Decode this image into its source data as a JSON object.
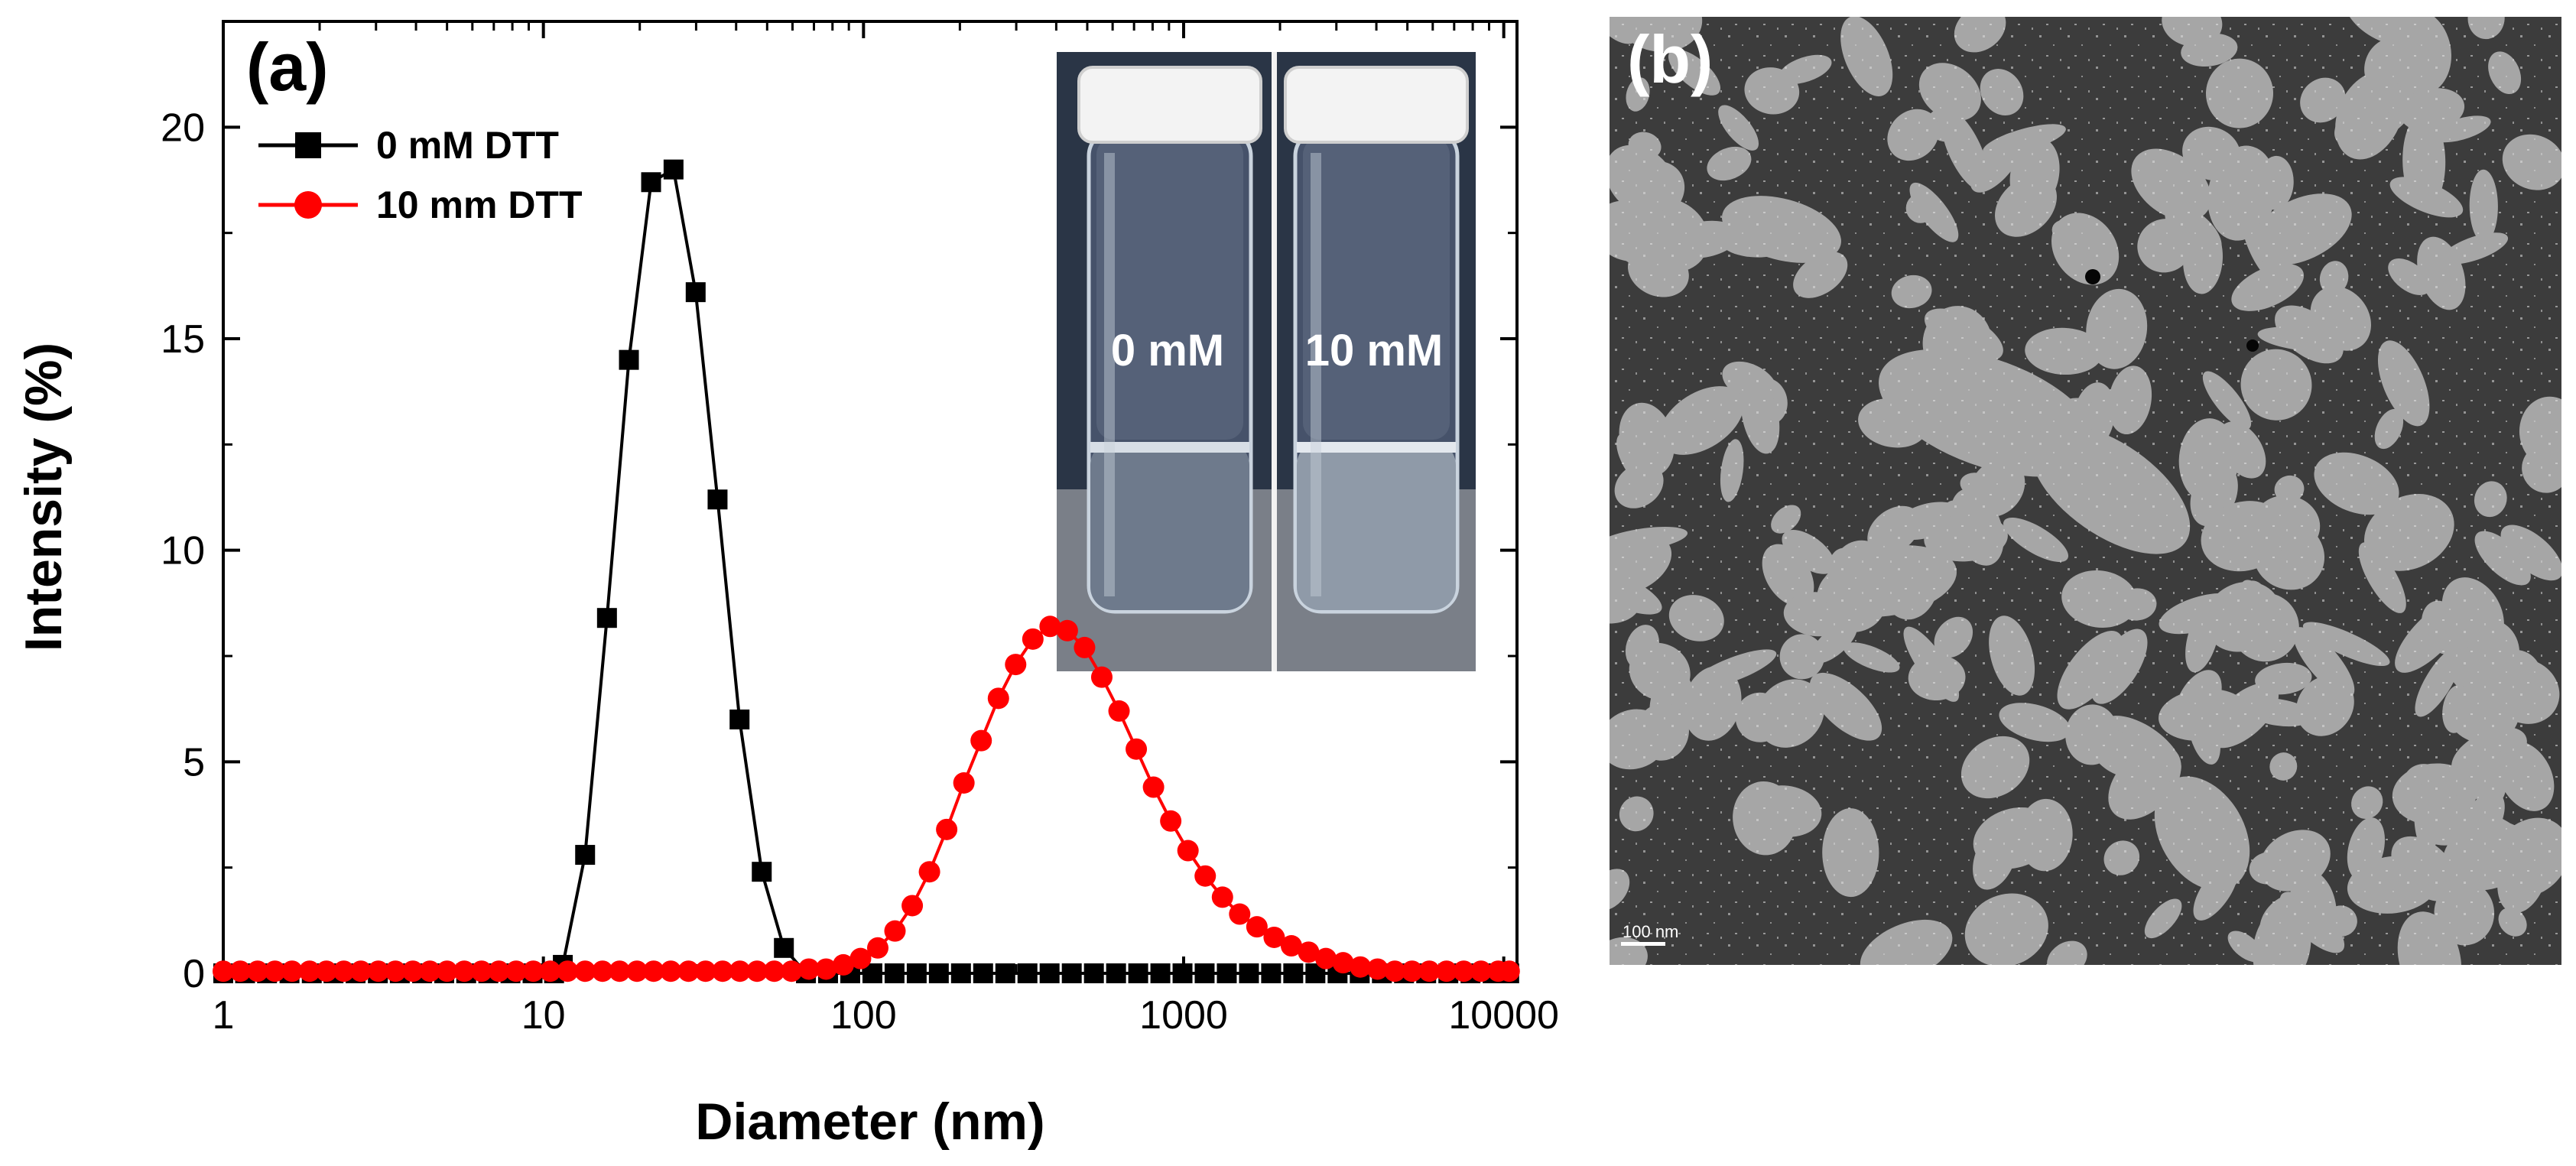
{
  "panel_a": {
    "label": "(a)",
    "inset_labels": [
      "0 mM",
      "10 mM"
    ]
  },
  "panel_b": {
    "label": "(b)",
    "scale_bar_text": "100 nm"
  },
  "colors": {
    "series_0mM": "#000000",
    "series_10mM": "#ff0000",
    "tem_background": "#3c3c3c",
    "tem_domain": "#a6a6a6"
  },
  "chart_data": {
    "type": "line",
    "xscale": "log",
    "xlabel": "Diameter (nm)",
    "ylabel": "Intensity (%)",
    "xlim": [
      1,
      11000
    ],
    "ylim": [
      0,
      22.5
    ],
    "xticks": [
      1,
      10,
      100,
      1000,
      10000
    ],
    "xtick_labels": [
      "1",
      "10",
      "100",
      "1000",
      "10000"
    ],
    "yticks": [
      0,
      5,
      10,
      15,
      20
    ],
    "ytick_labels": [
      "0",
      "5",
      "10",
      "15",
      "20"
    ],
    "legend_position": "top-left",
    "series": [
      {
        "name": "0 mM DTT",
        "color": "#000000",
        "marker": "square",
        "x": [
          1.0,
          1.17,
          1.37,
          1.61,
          1.89,
          2.21,
          2.59,
          3.04,
          3.56,
          4.18,
          4.9,
          5.74,
          6.73,
          7.89,
          9.25,
          10.8,
          11.5,
          13.5,
          15.8,
          18.5,
          21.7,
          25.5,
          29.9,
          35.0,
          41.0,
          48.1,
          56.4,
          66.1,
          77.5,
          90.9,
          106.6,
          125.0,
          146.6,
          171.9,
          201.6,
          236.4,
          277.3,
          325.2,
          381.3,
          447.2,
          524.5,
          615.1,
          721.3,
          845.9,
          992.0,
          1163.0,
          1364.0,
          1600.0,
          1876.0,
          2200.0,
          2580.0,
          3026.0,
          3549.0,
          4162.0,
          4881.0,
          5724.0,
          6713.0,
          7873.0,
          9233.0,
          10400.0
        ],
        "values": [
          0,
          0,
          0,
          0,
          0,
          0,
          0,
          0,
          0,
          0,
          0,
          0,
          0,
          0,
          0,
          0,
          0.2,
          2.8,
          8.4,
          14.5,
          18.7,
          19.0,
          16.1,
          11.2,
          6.0,
          2.4,
          0.6,
          0,
          0,
          0,
          0,
          0,
          0,
          0,
          0,
          0,
          0,
          0,
          0,
          0,
          0,
          0,
          0,
          0,
          0,
          0,
          0,
          0,
          0,
          0,
          0,
          0,
          0,
          0,
          0,
          0,
          0,
          0,
          0,
          0
        ]
      },
      {
        "name": "10 mm DTT",
        "color": "#ff0000",
        "marker": "circle",
        "x": [
          1.0,
          1.13,
          1.28,
          1.45,
          1.64,
          1.86,
          2.1,
          2.38,
          2.69,
          3.05,
          3.45,
          3.91,
          4.42,
          5.0,
          5.66,
          6.41,
          7.26,
          8.22,
          9.3,
          10.5,
          11.9,
          13.5,
          15.3,
          17.3,
          19.6,
          22.1,
          25.0,
          28.4,
          32.1,
          36.3,
          41.1,
          46.5,
          52.6,
          59.6,
          67.5,
          76.4,
          86.5,
          97.9,
          110.8,
          125.4,
          142.0,
          160.7,
          181.9,
          205.9,
          233.1,
          263.9,
          298.7,
          338.1,
          382.7,
          433.2,
          490.4,
          555.1,
          628.4,
          711.3,
          805.2,
          911.5,
          1031.8,
          1168.0,
          1322.1,
          1496.6,
          1694.2,
          1917.8,
          2170.9,
          2457.4,
          2781.8,
          3149.0,
          3564.6,
          4035.1,
          4567.8,
          5170.7,
          5853.3,
          6625.9,
          7500.5,
          8490.6,
          9611.3,
          10400.0
        ],
        "values": [
          0.05,
          0.05,
          0.05,
          0.05,
          0.05,
          0.05,
          0.05,
          0.05,
          0.05,
          0.05,
          0.05,
          0.05,
          0.05,
          0.05,
          0.05,
          0.05,
          0.05,
          0.05,
          0.05,
          0.05,
          0.05,
          0.05,
          0.05,
          0.05,
          0.05,
          0.05,
          0.05,
          0.05,
          0.05,
          0.05,
          0.05,
          0.05,
          0.05,
          0.05,
          0.1,
          0.1,
          0.2,
          0.35,
          0.6,
          1.0,
          1.6,
          2.4,
          3.4,
          4.5,
          5.5,
          6.5,
          7.3,
          7.9,
          8.2,
          8.1,
          7.7,
          7.0,
          6.2,
          5.3,
          4.4,
          3.6,
          2.9,
          2.3,
          1.8,
          1.4,
          1.1,
          0.85,
          0.65,
          0.5,
          0.35,
          0.25,
          0.15,
          0.1,
          0.05,
          0.05,
          0.05,
          0.05,
          0.05,
          0.05,
          0.05,
          0.05
        ]
      }
    ]
  }
}
